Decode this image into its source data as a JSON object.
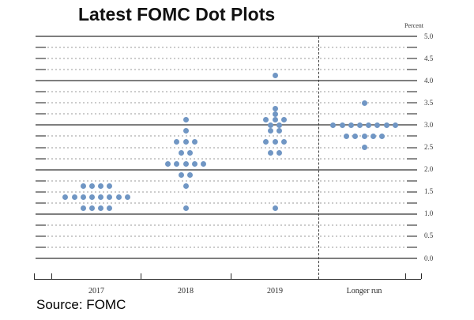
{
  "page": {
    "title": "Latest FOMC Dot Plots",
    "source": "Source: FOMC"
  },
  "chart_data": {
    "type": "scatter",
    "title": "Latest FOMC Dot Plots",
    "ylabel": "Percent",
    "ylim": [
      0.0,
      5.0
    ],
    "y_minor_step": 0.25,
    "y_label_step": 0.5,
    "y_tick_labels": [
      "5.0",
      "4.5",
      "4.0",
      "3.5",
      "3.0",
      "2.5",
      "2.0",
      "1.5",
      "1.0",
      "0.5",
      "0.0"
    ],
    "grid": "solid lines at integers, dotted lines at quarter points with solid end dashes",
    "legend_position": "none",
    "dot_color": "#7096c4",
    "categories": [
      "2017",
      "2018",
      "2019",
      "Longer run"
    ],
    "separator_before_category": "Longer run",
    "series": [
      {
        "category": "2017",
        "dots": [
          {
            "rate": 1.625,
            "count": 4
          },
          {
            "rate": 1.375,
            "count": 8
          },
          {
            "rate": 1.125,
            "count": 4
          }
        ]
      },
      {
        "category": "2018",
        "dots": [
          {
            "rate": 3.125,
            "count": 1
          },
          {
            "rate": 2.875,
            "count": 1
          },
          {
            "rate": 2.625,
            "count": 3
          },
          {
            "rate": 2.375,
            "count": 2
          },
          {
            "rate": 2.125,
            "count": 5
          },
          {
            "rate": 1.875,
            "count": 2
          },
          {
            "rate": 1.625,
            "count": 1
          },
          {
            "rate": 1.125,
            "count": 1
          }
        ]
      },
      {
        "category": "2019",
        "dots": [
          {
            "rate": 4.125,
            "count": 1
          },
          {
            "rate": 3.375,
            "count": 1
          },
          {
            "rate": 3.25,
            "count": 1
          },
          {
            "rate": 3.125,
            "count": 3
          },
          {
            "rate": 3.0,
            "count": 2
          },
          {
            "rate": 2.875,
            "count": 2
          },
          {
            "rate": 2.625,
            "count": 3
          },
          {
            "rate": 2.375,
            "count": 2
          },
          {
            "rate": 1.125,
            "count": 1
          }
        ]
      },
      {
        "category": "Longer run",
        "dots": [
          {
            "rate": 3.5,
            "count": 1
          },
          {
            "rate": 3.0,
            "count": 8
          },
          {
            "rate": 2.75,
            "count": 5
          },
          {
            "rate": 2.5,
            "count": 1
          }
        ]
      }
    ]
  }
}
